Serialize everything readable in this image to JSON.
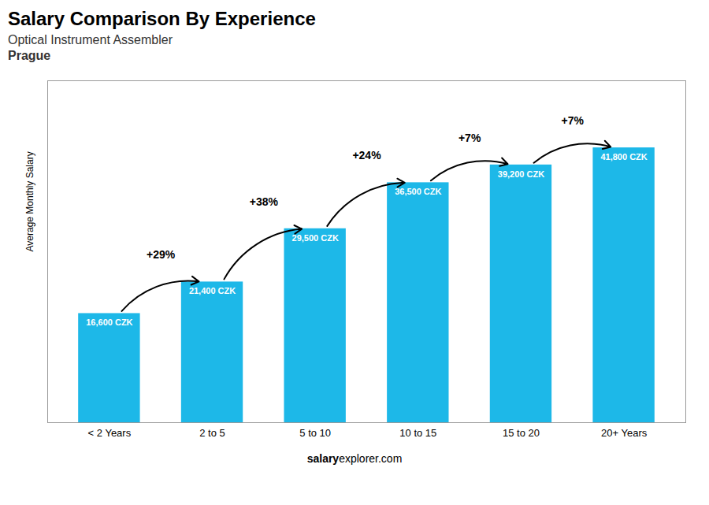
{
  "chart_data": {
    "type": "bar",
    "title": "Salary Comparison By Experience",
    "subtitle": [
      "Optical Instrument Assembler",
      "Prague"
    ],
    "caption": [
      "salary",
      "explorer.com"
    ],
    "ylabel": "Average Monthly Salary",
    "categories": [
      "< 2 Years",
      "2 to 5",
      "5 to 10",
      "10 to 15",
      "15 to 20",
      "20+ Years"
    ],
    "values": [
      16600,
      21400,
      29500,
      36500,
      39200,
      41800
    ],
    "value_labels": [
      "16,600 CZK",
      "21,400 CZK",
      "29,500 CZK",
      "36,500 CZK",
      "39,200 CZK",
      "41,800 CZK"
    ],
    "data_labels": true,
    "annotations": [
      {
        "text": "+29%",
        "from": "< 2 Years",
        "to": "2 to 5"
      },
      {
        "text": "+38%",
        "from": "2 to 5",
        "to": "5 to 10"
      },
      {
        "text": "+24%",
        "from": "5 to 10",
        "to": "10 to 15"
      },
      {
        "text": "+7%",
        "from": "10 to 15",
        "to": "15 to 20"
      },
      {
        "text": "+7%",
        "from": "15 to 20",
        "to": "20+ Years"
      }
    ],
    "color": "#1DB8E8",
    "ylim": [
      0,
      52000
    ],
    "tick_labels": "x"
  }
}
